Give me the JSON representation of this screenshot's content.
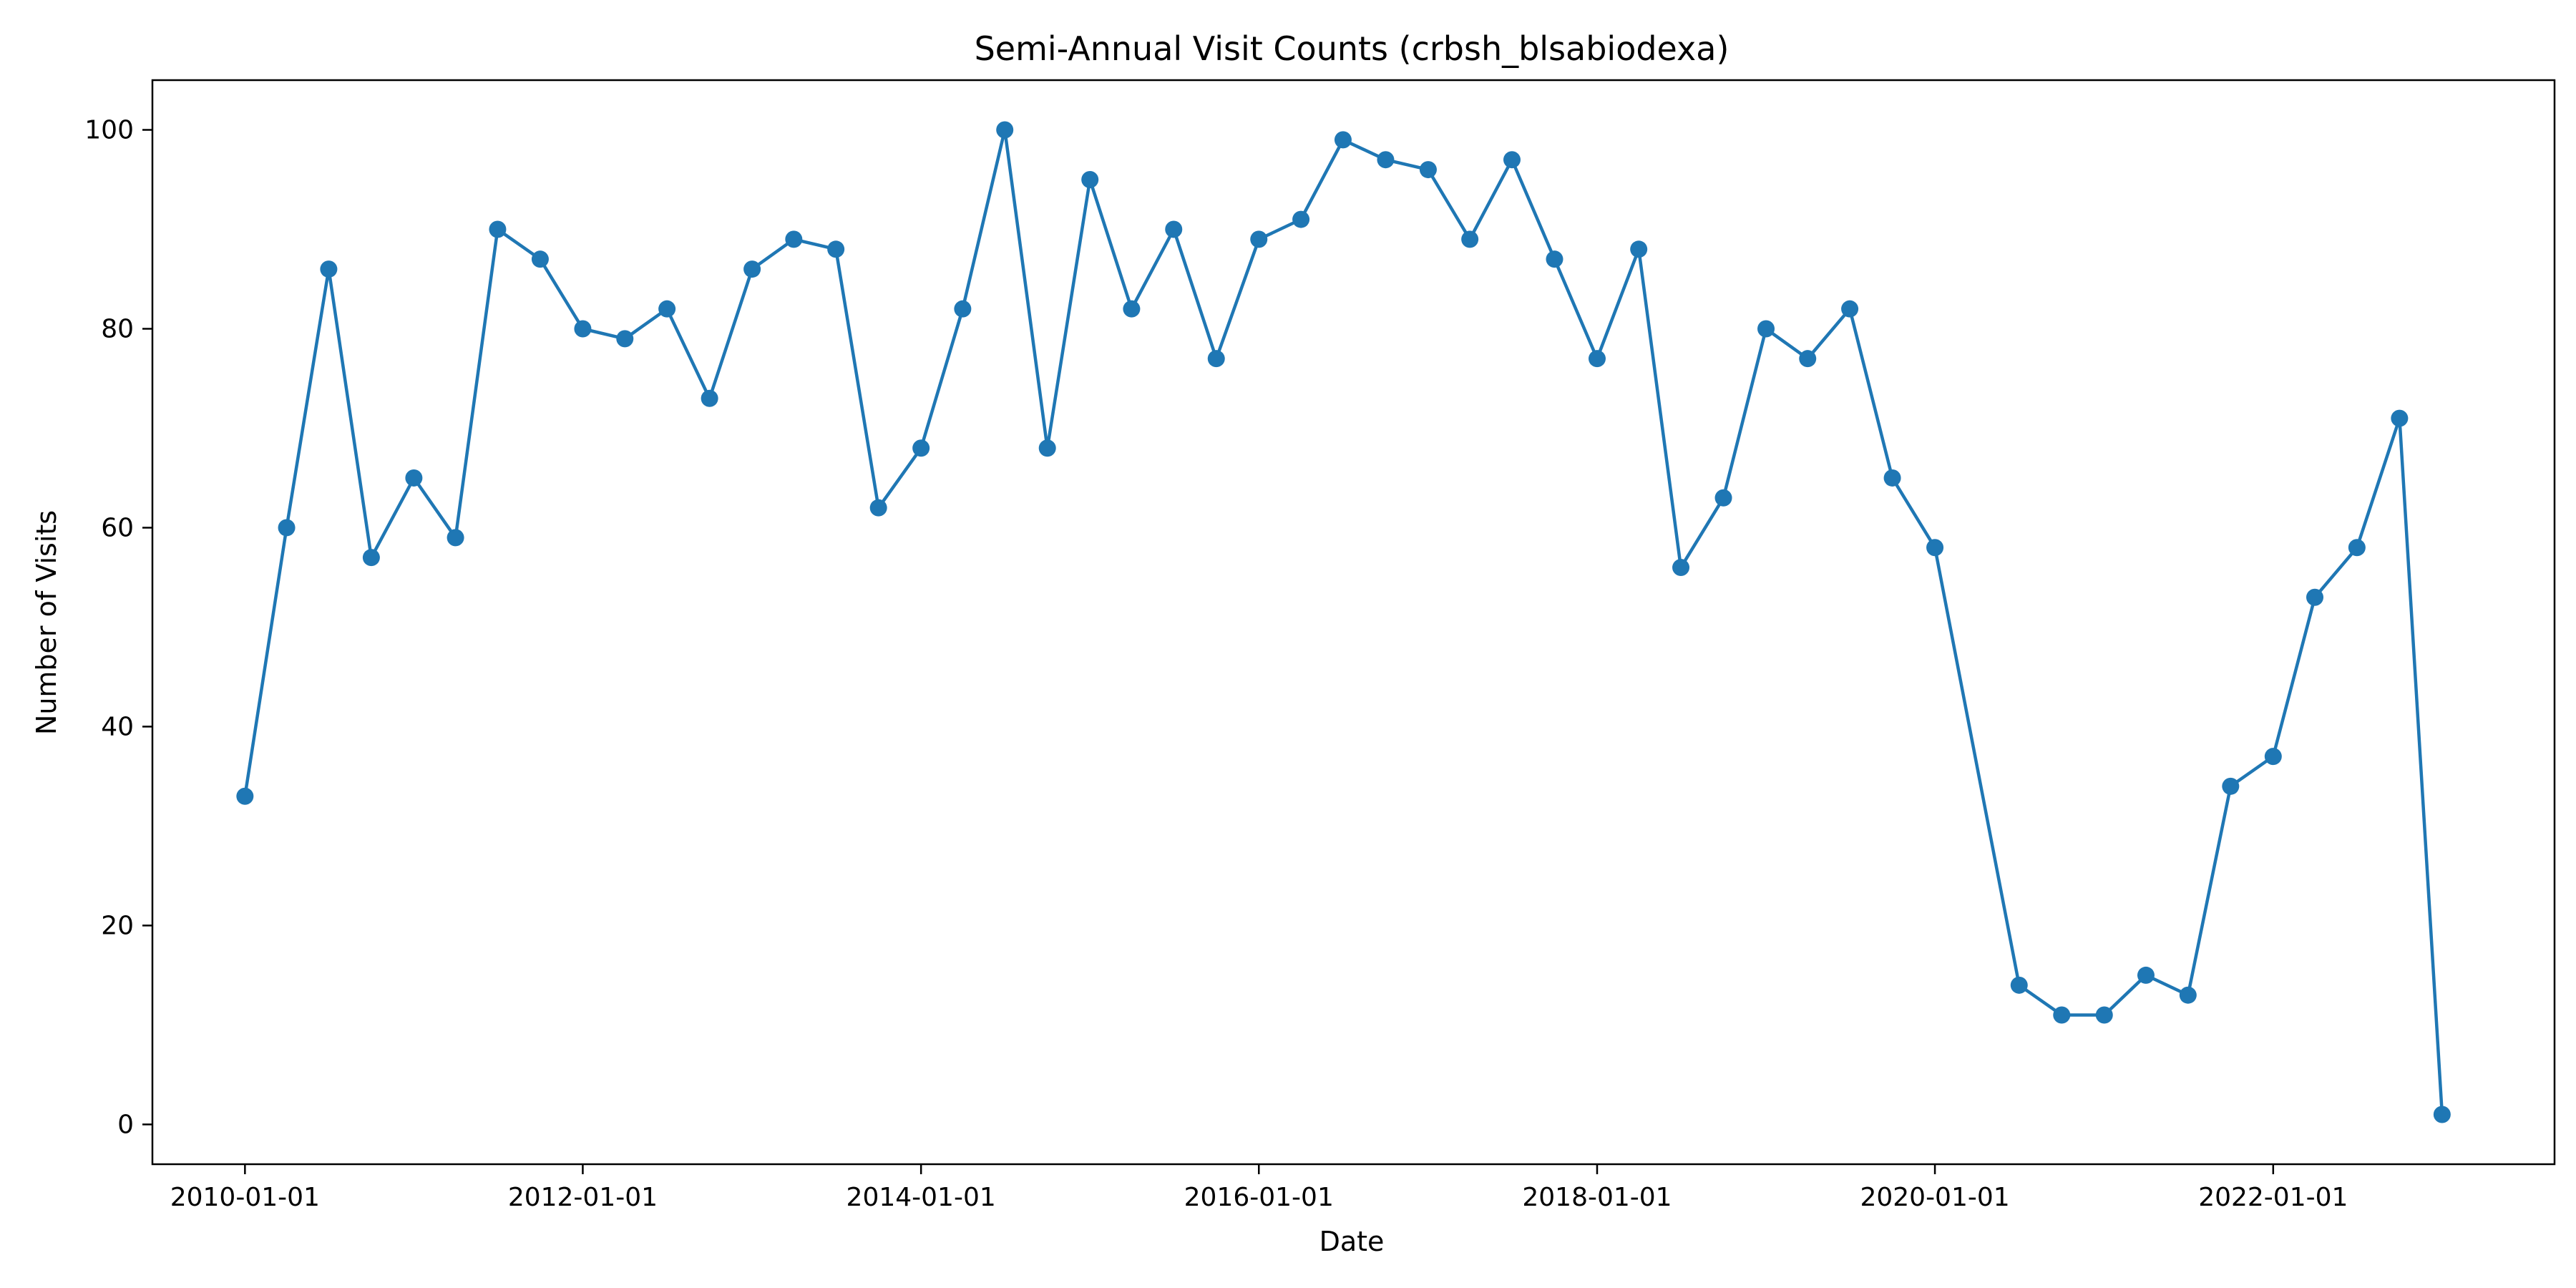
{
  "chart_data": {
    "type": "line",
    "title": "Semi-Annual Visit Counts (crbsh_blsabiodexa)",
    "xlabel": "Date",
    "ylabel": "Number of Visits",
    "x_ticks": [
      "2010-01-01",
      "2012-01-01",
      "2014-01-01",
      "2016-01-01",
      "2018-01-01",
      "2020-01-01",
      "2022-01-01"
    ],
    "y_ticks": [
      0,
      20,
      40,
      60,
      80,
      100
    ],
    "xlim": [
      "2009-06-15",
      "2023-09-01"
    ],
    "ylim": [
      -4,
      105
    ],
    "grid": false,
    "marker": "circle",
    "line_color": "#1f77b4",
    "series": [
      {
        "x": [
          "2010-01-01",
          "2010-04-01",
          "2010-07-01",
          "2010-10-01",
          "2011-01-01",
          "2011-04-01",
          "2011-07-01",
          "2011-10-01",
          "2012-01-01",
          "2012-04-01",
          "2012-07-01",
          "2012-10-01",
          "2013-01-01",
          "2013-04-01",
          "2013-07-01",
          "2013-10-01",
          "2014-01-01",
          "2014-04-01",
          "2014-07-01",
          "2014-10-01",
          "2015-01-01",
          "2015-04-01",
          "2015-07-01",
          "2015-10-01",
          "2016-01-01",
          "2016-04-01",
          "2016-07-01",
          "2016-10-01",
          "2017-01-01",
          "2017-04-01",
          "2017-07-01",
          "2017-10-01",
          "2018-01-01",
          "2018-04-01",
          "2018-07-01",
          "2018-10-01",
          "2019-01-01",
          "2019-04-01",
          "2019-07-01",
          "2019-10-01",
          "2020-01-01",
          "2020-07-01",
          "2020-10-01",
          "2021-01-01",
          "2021-04-01",
          "2021-07-01",
          "2021-10-01",
          "2022-01-01",
          "2022-04-01",
          "2022-07-01",
          "2022-10-01",
          "2023-01-01"
        ],
        "y": [
          33,
          60,
          86,
          57,
          65,
          59,
          90,
          87,
          80,
          79,
          82,
          73,
          86,
          89,
          88,
          62,
          68,
          82,
          100,
          68,
          95,
          82,
          90,
          77,
          89,
          91,
          99,
          97,
          96,
          89,
          97,
          87,
          77,
          88,
          56,
          63,
          80,
          77,
          82,
          65,
          58,
          14,
          11,
          11,
          15,
          13,
          34,
          37,
          53,
          58,
          71,
          1
        ]
      }
    ]
  }
}
